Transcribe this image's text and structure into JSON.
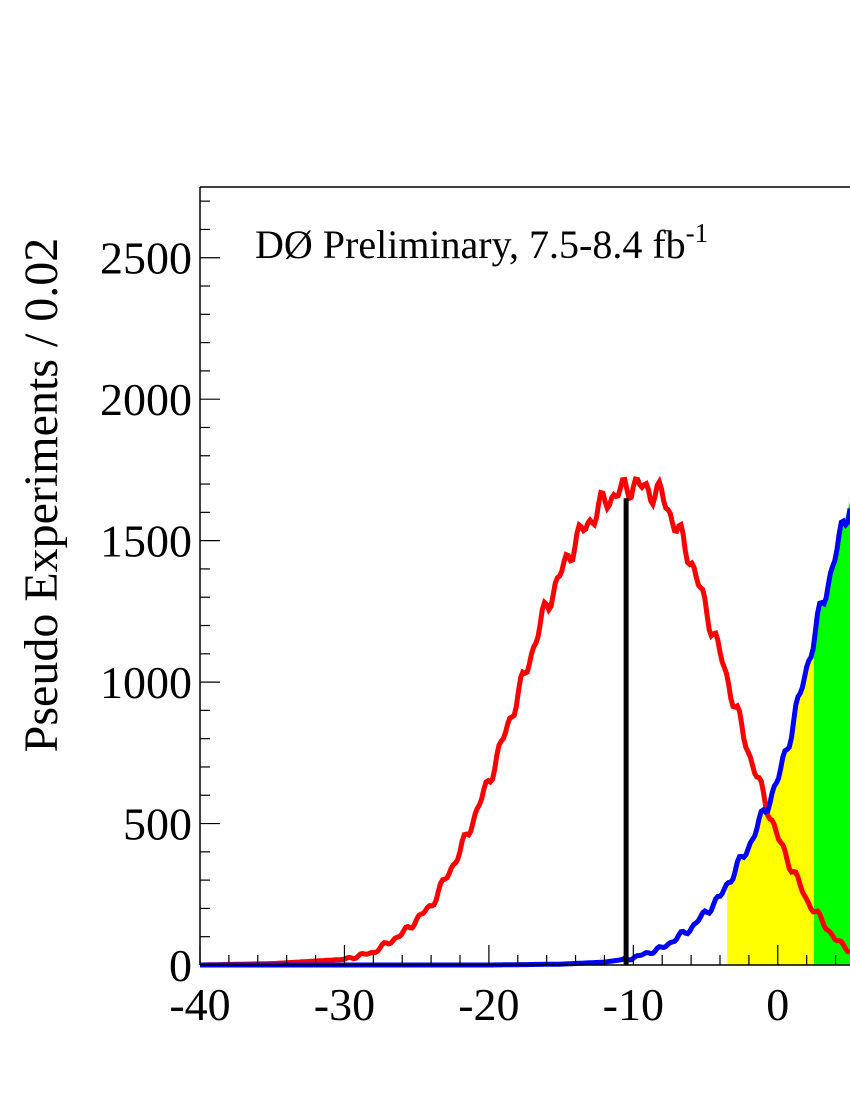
{
  "chart_data": {
    "type": "line",
    "annotation": "DØ Preliminary, 7.5-8.4 fb",
    "annotation_superscript": "-1",
    "ylabel": "Pseudo Experiments / 0.02",
    "xlabel": "",
    "xlim": [
      -40,
      5
    ],
    "ylim": [
      0,
      2750
    ],
    "xticks": [
      "-40",
      "-30",
      "-20",
      "-10",
      "0"
    ],
    "yticks": [
      "0",
      "500",
      "1000",
      "1500",
      "2000",
      "2500"
    ],
    "observed_line": {
      "x": -10.5,
      "height": 1650,
      "color": "#000000"
    },
    "series": [
      {
        "color": "#ff0000",
        "x": [
          -40,
          -35,
          -30,
          -28,
          -26,
          -24,
          -22,
          -20,
          -18,
          -16,
          -14,
          -12,
          -10,
          -8,
          -6,
          -4,
          -2,
          0,
          2,
          4,
          5
        ],
        "values": [
          0,
          5,
          20,
          45,
          110,
          210,
          400,
          650,
          950,
          1270,
          1500,
          1640,
          1700,
          1660,
          1430,
          1100,
          750,
          450,
          230,
          90,
          50
        ]
      },
      {
        "color": "#0000ff",
        "x": [
          -40,
          -20,
          -15,
          -12,
          -10,
          -8,
          -6,
          -4,
          -2,
          0,
          1,
          2,
          3,
          4,
          5
        ],
        "values": [
          0,
          0,
          3,
          10,
          25,
          60,
          130,
          240,
          420,
          650,
          840,
          1050,
          1260,
          1450,
          1640
        ]
      }
    ],
    "fills": [
      {
        "color": "#ffff00",
        "x_range": [
          -3.5,
          2.5
        ]
      },
      {
        "color": "#00ff00",
        "x_range": [
          2.5,
          5
        ]
      }
    ]
  }
}
